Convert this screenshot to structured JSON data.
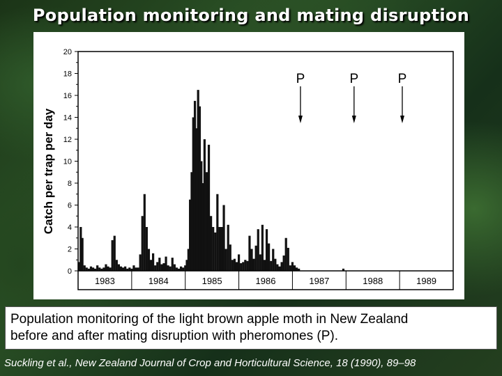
{
  "slide": {
    "title": "Population monitoring and mating disruption",
    "caption_line1": "Population monitoring of the light brown apple moth in New Zealand",
    "caption_line2": "before and after mating disruption with pheromones (P).",
    "citation": "Suckling et al., New Zealand Journal of Crop and Horticultural Science, 18 (1990), 89–98"
  },
  "chart_data": {
    "type": "bar",
    "title": "",
    "xlabel": "",
    "ylabel": "Catch per trap per day",
    "ylim": [
      0,
      20
    ],
    "yticks": [
      "0",
      "2",
      "4",
      "6",
      "8",
      "10",
      "12",
      "14",
      "16",
      "18",
      "20"
    ],
    "xlim": [
      1983.0,
      1990.0
    ],
    "year_labels": [
      {
        "label": "1983",
        "year": 1983
      },
      {
        "label": "1984",
        "year": 1984
      },
      {
        "label": "1985",
        "year": 1985
      },
      {
        "label": "1986",
        "year": 1986
      },
      {
        "label": "1987",
        "year": 1987
      },
      {
        "label": "1988",
        "year": 1988
      },
      {
        "label": "1989",
        "year": 1989
      }
    ],
    "grid": false,
    "annotations": [
      {
        "label": "P",
        "year": 1987.15
      },
      {
        "label": "P",
        "year": 1988.15
      },
      {
        "label": "P",
        "year": 1989.05
      }
    ],
    "x": [
      1983.02,
      1983.05,
      1983.08,
      1983.12,
      1983.16,
      1983.2,
      1983.24,
      1983.28,
      1983.32,
      1983.36,
      1983.4,
      1983.44,
      1983.48,
      1983.52,
      1983.56,
      1983.6,
      1983.64,
      1983.68,
      1983.72,
      1983.76,
      1983.8,
      1983.84,
      1983.88,
      1983.92,
      1983.96,
      1984.0,
      1984.04,
      1984.08,
      1984.12,
      1984.16,
      1984.2,
      1984.24,
      1984.28,
      1984.32,
      1984.36,
      1984.4,
      1984.44,
      1984.48,
      1984.52,
      1984.56,
      1984.6,
      1984.64,
      1984.68,
      1984.72,
      1984.76,
      1984.8,
      1984.84,
      1984.88,
      1984.92,
      1984.96,
      1985.0,
      1985.03,
      1985.06,
      1985.09,
      1985.12,
      1985.15,
      1985.18,
      1985.21,
      1985.24,
      1985.27,
      1985.3,
      1985.33,
      1985.36,
      1985.4,
      1985.44,
      1985.48,
      1985.52,
      1985.56,
      1985.6,
      1985.64,
      1985.68,
      1985.72,
      1985.76,
      1985.8,
      1985.84,
      1985.88,
      1985.92,
      1985.96,
      1986.0,
      1986.04,
      1986.08,
      1986.12,
      1986.16,
      1986.2,
      1986.24,
      1986.28,
      1986.32,
      1986.36,
      1986.4,
      1986.44,
      1986.48,
      1986.52,
      1986.56,
      1986.6,
      1986.64,
      1986.68,
      1986.72,
      1986.76,
      1986.8,
      1986.84,
      1986.88,
      1986.92,
      1986.96,
      1987.0,
      1987.04,
      1987.08,
      1987.12,
      1987.95
    ],
    "values": [
      0.8,
      4.0,
      3.0,
      0.5,
      0.3,
      0.2,
      0.4,
      0.3,
      0.2,
      0.5,
      0.3,
      0.2,
      0.3,
      0.6,
      0.4,
      0.3,
      2.8,
      3.2,
      1.0,
      0.6,
      0.4,
      0.3,
      0.4,
      0.2,
      0.3,
      0.2,
      0.5,
      0.3,
      0.3,
      1.5,
      5.0,
      7.0,
      4.0,
      2.0,
      1.0,
      1.6,
      0.5,
      0.8,
      1.2,
      0.6,
      0.7,
      1.3,
      0.5,
      0.4,
      1.2,
      0.6,
      0.3,
      0.2,
      0.4,
      0.3,
      0.5,
      1.0,
      2.0,
      6.5,
      9.0,
      14.0,
      15.5,
      13.0,
      16.5,
      15.0,
      10.0,
      8.0,
      12.0,
      9.0,
      11.5,
      5.0,
      4.0,
      3.5,
      7.0,
      4.0,
      4.0,
      6.0,
      2.0,
      4.2,
      2.4,
      1.0,
      1.1,
      0.8,
      1.5,
      0.7,
      0.8,
      1.0,
      0.9,
      3.2,
      2.0,
      1.1,
      2.3,
      3.8,
      1.5,
      4.2,
      1.0,
      3.8,
      2.5,
      0.9,
      2.0,
      1.1,
      0.6,
      0.4,
      0.8,
      1.4,
      3.0,
      2.1,
      0.5,
      0.8,
      0.5,
      0.3,
      0.2,
      0.2
    ]
  }
}
